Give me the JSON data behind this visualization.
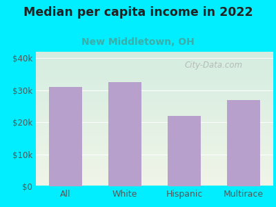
{
  "title": "Median per capita income in 2022",
  "subtitle": "New Middletown, OH",
  "categories": [
    "All",
    "White",
    "Hispanic",
    "Multirace"
  ],
  "values": [
    31000,
    32500,
    22000,
    27000
  ],
  "bar_color": "#b8a0cc",
  "title_fontsize": 12.5,
  "title_fontweight": "bold",
  "title_color": "#222222",
  "subtitle_fontsize": 10,
  "subtitle_color": "#3aafa9",
  "background_outer": "#00eeff",
  "gradient_top": "#d4ede0",
  "gradient_bottom": "#f0f5e8",
  "yticks": [
    0,
    10000,
    20000,
    30000,
    40000
  ],
  "ylim": [
    0,
    42000
  ],
  "watermark": "City-Data.com",
  "watermark_color": "#aaaaaa",
  "gridline_color": "#ffffff",
  "bottom_spine_color": "#00eeff",
  "tick_color": "#555555"
}
